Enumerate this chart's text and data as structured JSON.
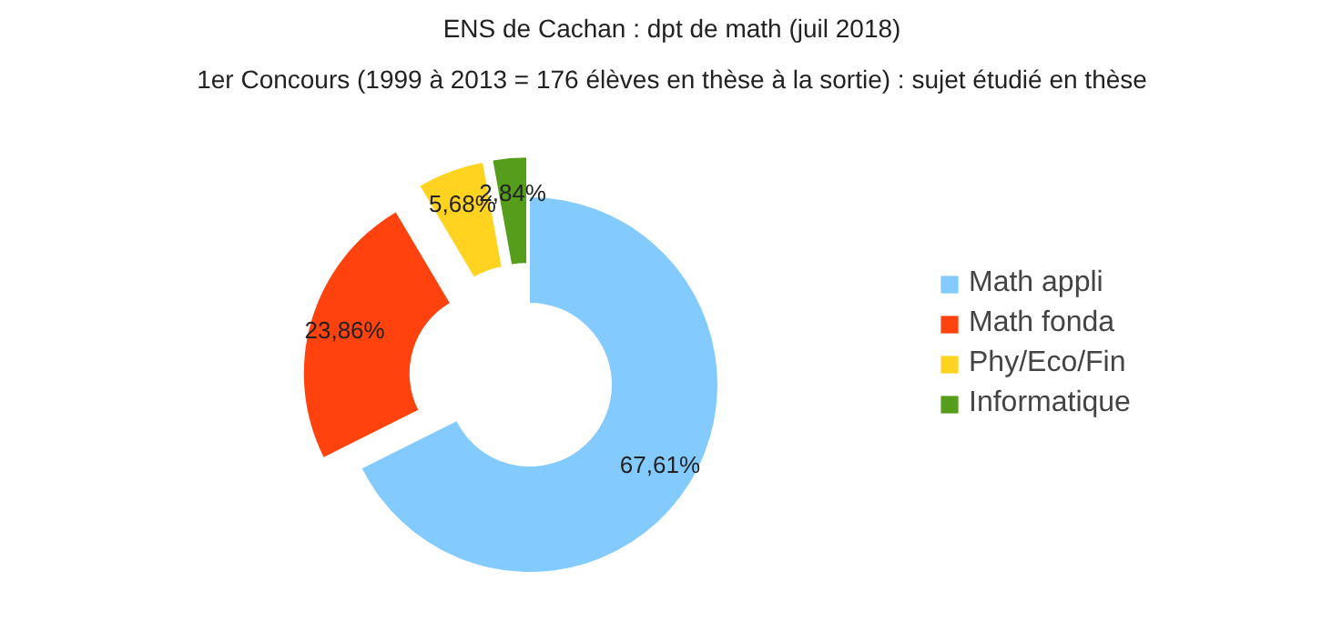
{
  "chart_data": {
    "type": "donut",
    "title": "ENS de Cachan : dpt de math (juil 2018)",
    "subtitle": "1er Concours (1999 à 2013 = 176 élèves en thèse à la sortie) : sujet étudié en thèse",
    "categories": [
      "Math appli",
      "Math fonda",
      "Phy/Eco/Fin",
      "Informatique"
    ],
    "values": [
      67.61,
      23.86,
      5.68,
      2.84
    ],
    "colors": [
      "#83caff",
      "#ff420e",
      "#ffd320",
      "#579d1c"
    ],
    "value_labels": [
      "67,61%",
      "23,86%",
      "5,68%",
      "2,84%"
    ],
    "legend": "right"
  }
}
